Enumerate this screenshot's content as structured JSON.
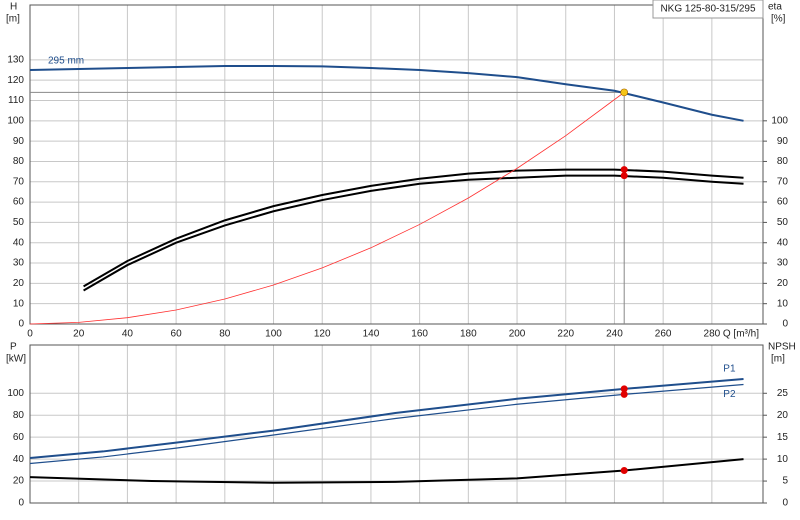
{
  "chart_data": [
    {
      "type": "line",
      "title": "NKG 125-80-315/295",
      "y_label": "H",
      "y_unit": "[m]",
      "y2_label": "eta",
      "y2_unit": "[%]",
      "x_label": "Q [m³/h]",
      "xlim": [
        0,
        301
      ],
      "xticks": [
        0,
        20,
        40,
        60,
        80,
        100,
        120,
        140,
        160,
        180,
        200,
        220,
        240,
        260,
        280
      ],
      "xtick_labels": true,
      "ylim": [
        0,
        157
      ],
      "yticks": [
        0,
        10,
        20,
        30,
        40,
        50,
        60,
        70,
        80,
        90,
        100,
        110,
        120,
        130
      ],
      "y2lim": [
        0,
        157
      ],
      "y2ticks": [
        0,
        10,
        20,
        30,
        40,
        50,
        60,
        70,
        80,
        90,
        100
      ],
      "grid": true,
      "series": [
        {
          "name": "295 mm",
          "color": "#1f4e8c",
          "width": 2,
          "x": [
            0,
            20,
            40,
            60,
            80,
            100,
            120,
            140,
            160,
            180,
            200,
            220,
            240,
            260,
            280,
            293
          ],
          "values": [
            125,
            125.5,
            126,
            126.5,
            127,
            127,
            126.8,
            126,
            125,
            123.5,
            121.5,
            118,
            114.8,
            109,
            103,
            100
          ]
        },
        {
          "color": "#000000",
          "width": 2,
          "axis": "y2",
          "x": [
            22,
            40,
            60,
            80,
            100,
            120,
            140,
            160,
            180,
            200,
            220,
            240,
            260,
            280,
            293
          ],
          "values": [
            18.5,
            31,
            42,
            51,
            58,
            63.5,
            68,
            71.5,
            74,
            75.5,
            76,
            76,
            75,
            73,
            72
          ]
        },
        {
          "color": "#000000",
          "width": 2,
          "axis": "y2",
          "x": [
            22,
            40,
            60,
            80,
            100,
            120,
            140,
            160,
            180,
            200,
            220,
            240,
            260,
            280,
            293
          ],
          "values": [
            16.5,
            29,
            40,
            48.5,
            55.5,
            61,
            65.5,
            69,
            71,
            72,
            73,
            73,
            72,
            70,
            69
          ]
        },
        {
          "color": "#ff3030",
          "width": 0.8,
          "x": [
            0,
            20,
            40,
            60,
            80,
            100,
            120,
            140,
            160,
            180,
            200,
            220,
            244
          ],
          "values": [
            0,
            0.8,
            3.1,
            6.9,
            12.3,
            19.2,
            27.6,
            37.5,
            49,
            62,
            76.6,
            92.7,
            114
          ]
        }
      ],
      "guide": {
        "x": 244,
        "y": 114,
        "color": "#888888"
      },
      "markers": [
        {
          "x": 244,
          "y": 114,
          "color": "#f5c518"
        },
        {
          "x": 244,
          "y": 76,
          "color": "#e00000",
          "axis": "y2"
        },
        {
          "x": 244,
          "y": 73,
          "color": "#e00000",
          "axis": "y2"
        }
      ]
    },
    {
      "type": "line",
      "y_label": "P",
      "y_unit": "[kW]",
      "y2_label": "NPSH",
      "y2_unit": "[m]",
      "xlim": [
        0,
        301
      ],
      "xticks": [
        0,
        20,
        40,
        60,
        80,
        100,
        120,
        140,
        160,
        180,
        200,
        220,
        240,
        260,
        280
      ],
      "xtick_labels": false,
      "ylim": [
        0,
        144
      ],
      "yticks": [
        0,
        20,
        40,
        60,
        80,
        100
      ],
      "y2lim": [
        0,
        36
      ],
      "y2ticks": [
        0,
        5,
        10,
        15,
        20,
        25
      ],
      "grid": true,
      "series": [
        {
          "name": "P1",
          "color": "#1f4e8c",
          "width": 2,
          "x": [
            0,
            30,
            60,
            100,
            150,
            200,
            244,
            293
          ],
          "values": [
            41,
            47,
            55,
            66,
            82,
            95,
            104,
            113
          ]
        },
        {
          "name": "P2",
          "color": "#1f4e8c",
          "width": 1.2,
          "x": [
            0,
            30,
            60,
            100,
            150,
            200,
            244,
            293
          ],
          "values": [
            36,
            42,
            50,
            62,
            77,
            90,
            99,
            108
          ]
        },
        {
          "color": "#000000",
          "width": 2,
          "axis": "y2",
          "x": [
            0,
            50,
            100,
            150,
            200,
            244,
            293
          ],
          "values": [
            5.9,
            5.0,
            4.6,
            4.8,
            5.6,
            7.4,
            10
          ]
        }
      ],
      "markers": [
        {
          "x": 244,
          "y": 104,
          "color": "#e00000"
        },
        {
          "x": 244,
          "y": 99,
          "color": "#e00000"
        },
        {
          "x": 244,
          "y": 7.4,
          "color": "#e00000",
          "axis": "y2"
        }
      ]
    }
  ]
}
